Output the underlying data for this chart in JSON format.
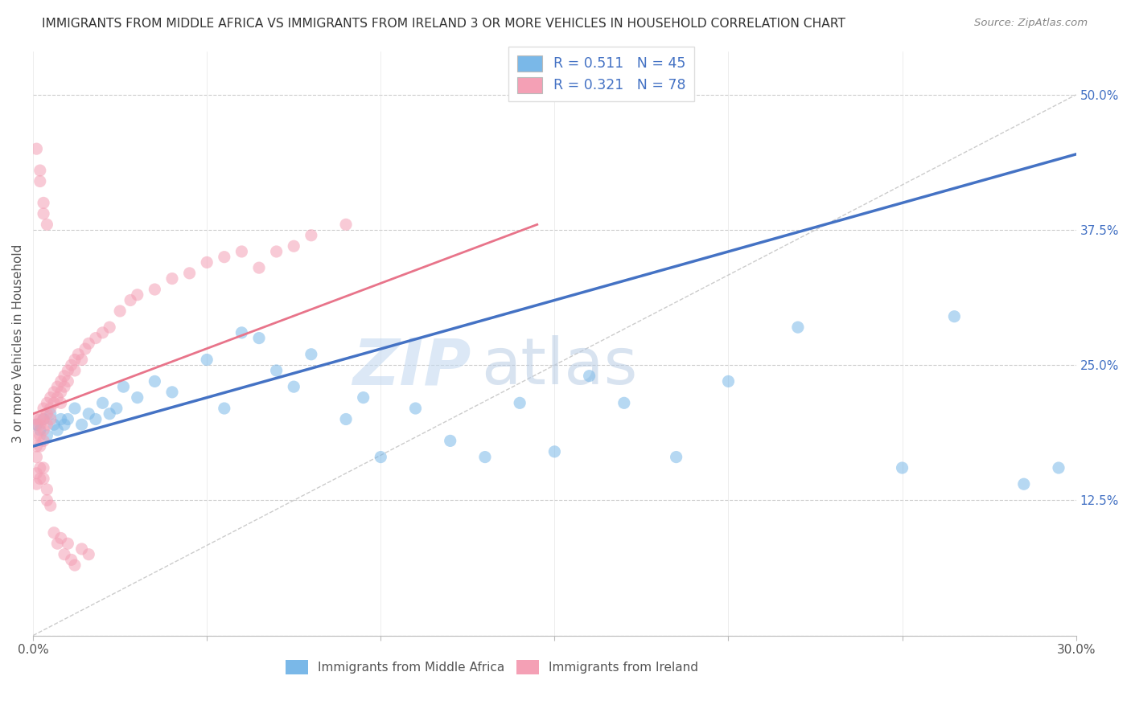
{
  "title": "IMMIGRANTS FROM MIDDLE AFRICA VS IMMIGRANTS FROM IRELAND 3 OR MORE VEHICLES IN HOUSEHOLD CORRELATION CHART",
  "source": "Source: ZipAtlas.com",
  "ylabel": "3 or more Vehicles in Household",
  "color_blue": "#7ab8e8",
  "color_pink": "#f4a0b5",
  "color_blue_line": "#4472c4",
  "color_pink_line": "#e8748a",
  "color_blue_text": "#4472c4",
  "watermark_zip": "ZIP",
  "watermark_atlas": "atlas",
  "xmin": 0.0,
  "xmax": 0.3,
  "ymin": 0.0,
  "ymax": 0.54,
  "yticks": [
    0.0,
    0.125,
    0.25,
    0.375,
    0.5
  ],
  "ytick_labels_right": [
    "",
    "12.5%",
    "25.0%",
    "37.5%",
    "50.0%"
  ],
  "xticks": [
    0.0,
    0.05,
    0.1,
    0.15,
    0.2,
    0.25,
    0.3
  ],
  "xtick_labels": [
    "0.0%",
    "",
    "",
    "",
    "",
    "",
    "30.0%"
  ],
  "blue_line_x": [
    0.0,
    0.3
  ],
  "blue_line_y": [
    0.175,
    0.445
  ],
  "pink_line_x": [
    0.0,
    0.145
  ],
  "pink_line_y": [
    0.205,
    0.38
  ],
  "diag_line_x": [
    0.0,
    0.3
  ],
  "diag_line_y": [
    0.0,
    0.5
  ],
  "legend_r1": "0.511",
  "legend_n1": "45",
  "legend_r2": "0.321",
  "legend_n2": "78",
  "blue_scatter_x": [
    0.001,
    0.002,
    0.003,
    0.004,
    0.005,
    0.006,
    0.007,
    0.008,
    0.009,
    0.01,
    0.012,
    0.014,
    0.016,
    0.018,
    0.02,
    0.022,
    0.024,
    0.026,
    0.03,
    0.035,
    0.04,
    0.05,
    0.055,
    0.06,
    0.065,
    0.07,
    0.075,
    0.08,
    0.09,
    0.095,
    0.1,
    0.11,
    0.12,
    0.13,
    0.14,
    0.15,
    0.16,
    0.17,
    0.185,
    0.2,
    0.22,
    0.25,
    0.265,
    0.285,
    0.295
  ],
  "blue_scatter_y": [
    0.195,
    0.19,
    0.2,
    0.185,
    0.205,
    0.195,
    0.19,
    0.2,
    0.195,
    0.2,
    0.21,
    0.195,
    0.205,
    0.2,
    0.215,
    0.205,
    0.21,
    0.23,
    0.22,
    0.235,
    0.225,
    0.255,
    0.21,
    0.28,
    0.275,
    0.245,
    0.23,
    0.26,
    0.2,
    0.22,
    0.165,
    0.21,
    0.18,
    0.165,
    0.215,
    0.17,
    0.24,
    0.215,
    0.165,
    0.235,
    0.285,
    0.155,
    0.295,
    0.14,
    0.155
  ],
  "pink_scatter_x": [
    0.001,
    0.001,
    0.001,
    0.001,
    0.001,
    0.002,
    0.002,
    0.002,
    0.002,
    0.003,
    0.003,
    0.003,
    0.003,
    0.004,
    0.004,
    0.004,
    0.005,
    0.005,
    0.005,
    0.006,
    0.006,
    0.007,
    0.007,
    0.008,
    0.008,
    0.008,
    0.009,
    0.009,
    0.01,
    0.01,
    0.011,
    0.012,
    0.012,
    0.013,
    0.014,
    0.015,
    0.016,
    0.018,
    0.02,
    0.022,
    0.025,
    0.028,
    0.03,
    0.035,
    0.04,
    0.045,
    0.05,
    0.055,
    0.06,
    0.065,
    0.07,
    0.075,
    0.08,
    0.09,
    0.001,
    0.001,
    0.002,
    0.002,
    0.003,
    0.003,
    0.004,
    0.004,
    0.005,
    0.006,
    0.007,
    0.008,
    0.009,
    0.01,
    0.011,
    0.012,
    0.014,
    0.016,
    0.001,
    0.002,
    0.002,
    0.003,
    0.003,
    0.004
  ],
  "pink_scatter_y": [
    0.2,
    0.195,
    0.185,
    0.175,
    0.165,
    0.2,
    0.195,
    0.185,
    0.175,
    0.21,
    0.2,
    0.19,
    0.18,
    0.215,
    0.205,
    0.195,
    0.22,
    0.21,
    0.2,
    0.225,
    0.215,
    0.23,
    0.22,
    0.235,
    0.225,
    0.215,
    0.24,
    0.23,
    0.245,
    0.235,
    0.25,
    0.255,
    0.245,
    0.26,
    0.255,
    0.265,
    0.27,
    0.275,
    0.28,
    0.285,
    0.3,
    0.31,
    0.315,
    0.32,
    0.33,
    0.335,
    0.345,
    0.35,
    0.355,
    0.34,
    0.355,
    0.36,
    0.37,
    0.38,
    0.15,
    0.14,
    0.155,
    0.145,
    0.155,
    0.145,
    0.135,
    0.125,
    0.12,
    0.095,
    0.085,
    0.09,
    0.075,
    0.085,
    0.07,
    0.065,
    0.08,
    0.075,
    0.45,
    0.43,
    0.42,
    0.4,
    0.39,
    0.38
  ]
}
